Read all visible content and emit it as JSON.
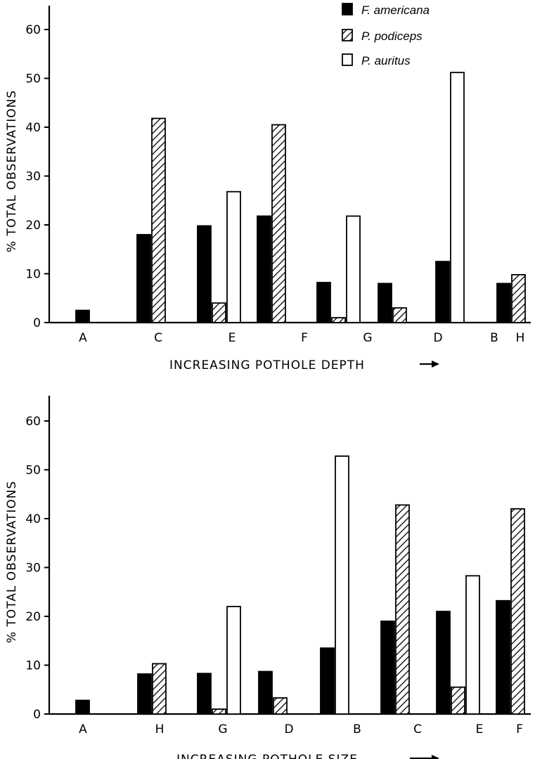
{
  "legend": [
    {
      "label": "F. americana",
      "fill": "solid"
    },
    {
      "label": "P. podiceps",
      "fill": "hatched"
    },
    {
      "label": "P. auritus",
      "fill": "open"
    }
  ],
  "colors": {
    "ink": "#000000",
    "background": "#ffffff"
  },
  "chart_data": [
    {
      "type": "bar",
      "title": "",
      "xlabel": "INCREASING POTHOLE DEPTH",
      "ylabel": "% TOTAL OBSERVATIONS",
      "ylim": [
        0,
        60
      ],
      "yticks": [
        0,
        10,
        20,
        30,
        40,
        50,
        60
      ],
      "categories": [
        "A",
        "C",
        "E",
        "F",
        "G",
        "D",
        "B",
        "H"
      ],
      "series": [
        {
          "name": "F. americana",
          "values": [
            2.5,
            18,
            19.8,
            21.8,
            8.2,
            8,
            12.5,
            8
          ]
        },
        {
          "name": "P. podiceps",
          "values": [
            0,
            41.8,
            4,
            40.5,
            1,
            3,
            0,
            9.8
          ]
        },
        {
          "name": "P. auritus",
          "values": [
            0,
            0,
            26.8,
            0,
            21.8,
            0,
            51.2,
            0
          ]
        }
      ],
      "legend_position": "top-right",
      "grid": false
    },
    {
      "type": "bar",
      "title": "",
      "xlabel": "INCREASING POTHOLE SIZE",
      "ylabel": "% TOTAL OBSERVATIONS",
      "ylim": [
        0,
        60
      ],
      "yticks": [
        0,
        10,
        20,
        30,
        40,
        50,
        60
      ],
      "categories": [
        "A",
        "H",
        "G",
        "D",
        "B",
        "C",
        "E",
        "F"
      ],
      "series": [
        {
          "name": "F. americana",
          "values": [
            2.8,
            8.2,
            8.3,
            8.7,
            13.5,
            19,
            21,
            23.2
          ]
        },
        {
          "name": "P. podiceps",
          "values": [
            0,
            10.3,
            1,
            3.3,
            0,
            42.8,
            5.5,
            42
          ]
        },
        {
          "name": "P. auritus",
          "values": [
            0,
            0,
            22,
            0,
            52.8,
            0,
            28.3,
            0
          ]
        }
      ],
      "grid": false
    }
  ]
}
